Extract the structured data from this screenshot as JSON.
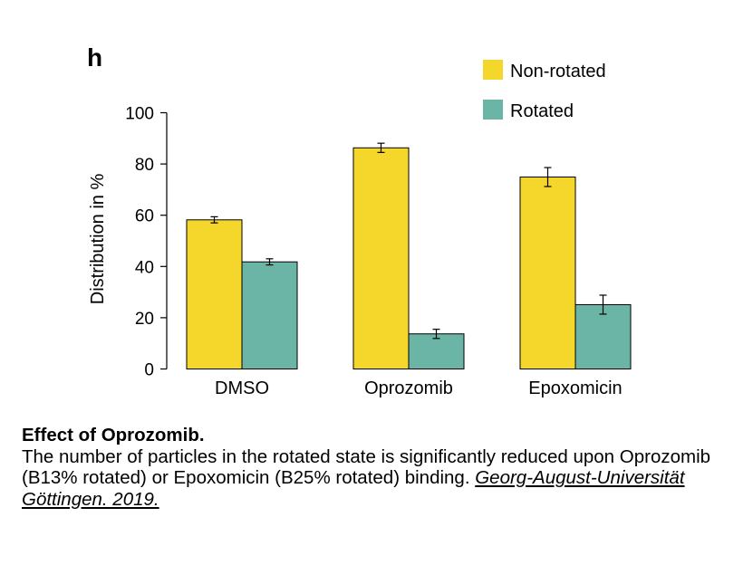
{
  "panel_label": "h",
  "chart_data": {
    "type": "bar",
    "title": "",
    "xlabel": "",
    "ylabel": "Distribution in %",
    "ylim": [
      0,
      100
    ],
    "yticks": [
      0,
      20,
      40,
      60,
      80,
      100
    ],
    "categories": [
      "DMSO",
      "Oprozomib",
      "Epoxomicin"
    ],
    "series": [
      {
        "name": "Non-rotated",
        "color": "#f5d62a",
        "values": [
          58.2,
          86.3,
          74.9
        ],
        "errors": [
          1.2,
          1.8,
          3.7
        ]
      },
      {
        "name": "Rotated",
        "color": "#6bb5a7",
        "values": [
          41.8,
          13.7,
          25.1
        ],
        "errors": [
          1.2,
          1.8,
          3.7
        ]
      }
    ],
    "legend_position": "top-right",
    "grid": false
  },
  "caption": {
    "title": "Effect of Oprozomib.",
    "text": "The number of particles in the rotated state is significantly reduced upon Oprozomib (B13% rotated) or Epoxomicin (B25% rotated) binding. ",
    "citation": "Georg-August-Universität Göttingen. 2019."
  }
}
